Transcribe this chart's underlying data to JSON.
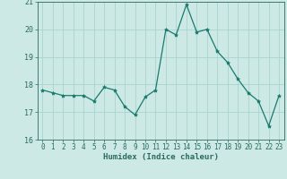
{
  "x": [
    0,
    1,
    2,
    3,
    4,
    5,
    6,
    7,
    8,
    9,
    10,
    11,
    12,
    13,
    14,
    15,
    16,
    17,
    18,
    19,
    20,
    21,
    22,
    23
  ],
  "y": [
    17.8,
    17.7,
    17.6,
    17.6,
    17.6,
    17.4,
    17.9,
    17.8,
    17.2,
    16.9,
    17.55,
    17.8,
    20.0,
    19.8,
    20.9,
    19.9,
    20.0,
    19.2,
    18.8,
    18.2,
    17.7,
    17.4,
    16.5,
    17.6
  ],
  "xlim": [
    -0.5,
    23.5
  ],
  "ylim": [
    16,
    21
  ],
  "yticks": [
    16,
    17,
    18,
    19,
    20,
    21
  ],
  "xticks": [
    0,
    1,
    2,
    3,
    4,
    5,
    6,
    7,
    8,
    9,
    10,
    11,
    12,
    13,
    14,
    15,
    16,
    17,
    18,
    19,
    20,
    21,
    22,
    23
  ],
  "xlabel": "Humidex (Indice chaleur)",
  "line_color": "#1a7a6e",
  "marker": "*",
  "marker_size": 3,
  "bg_color": "#cce9e5",
  "grid_color": "#aad4cf",
  "spine_color": "#2a6a60"
}
